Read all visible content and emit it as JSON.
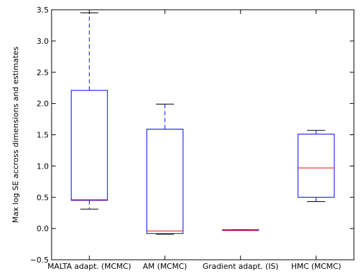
{
  "chart_data": {
    "type": "box",
    "title": "",
    "xlabel": "",
    "ylabel": "Max log SE accross dimensions and estimates",
    "ylim": [
      -0.5,
      3.5
    ],
    "yticks": [
      -0.5,
      0.0,
      0.5,
      1.0,
      1.5,
      2.0,
      2.5,
      3.0,
      3.5
    ],
    "ytick_labels": [
      "−0.5",
      "0.0",
      "0.5",
      "1.0",
      "1.5",
      "2.0",
      "2.5",
      "3.0",
      "3.5"
    ],
    "grid": false,
    "categories": [
      "MALTA adapt. (MCMC)",
      "AM (MCMC)",
      "Gradient adapt. (IS)",
      "HMC (MCMC)"
    ],
    "boxes": [
      {
        "min": 0.31,
        "q1": 0.45,
        "median": 0.46,
        "q3": 2.21,
        "max": 3.45
      },
      {
        "min": -0.09,
        "q1": -0.08,
        "median": -0.04,
        "q3": 1.59,
        "max": 1.99
      },
      {
        "min": -0.03,
        "q1": -0.03,
        "median": -0.03,
        "q3": -0.02,
        "max": -0.02
      },
      {
        "min": 0.43,
        "q1": 0.5,
        "median": 0.97,
        "q3": 1.51,
        "max": 1.57
      }
    ],
    "colors": {
      "box": "#0000ff",
      "median": "#ff0000",
      "whisker": "#0000ff",
      "cap": "#000000",
      "axes": "#000000"
    }
  }
}
